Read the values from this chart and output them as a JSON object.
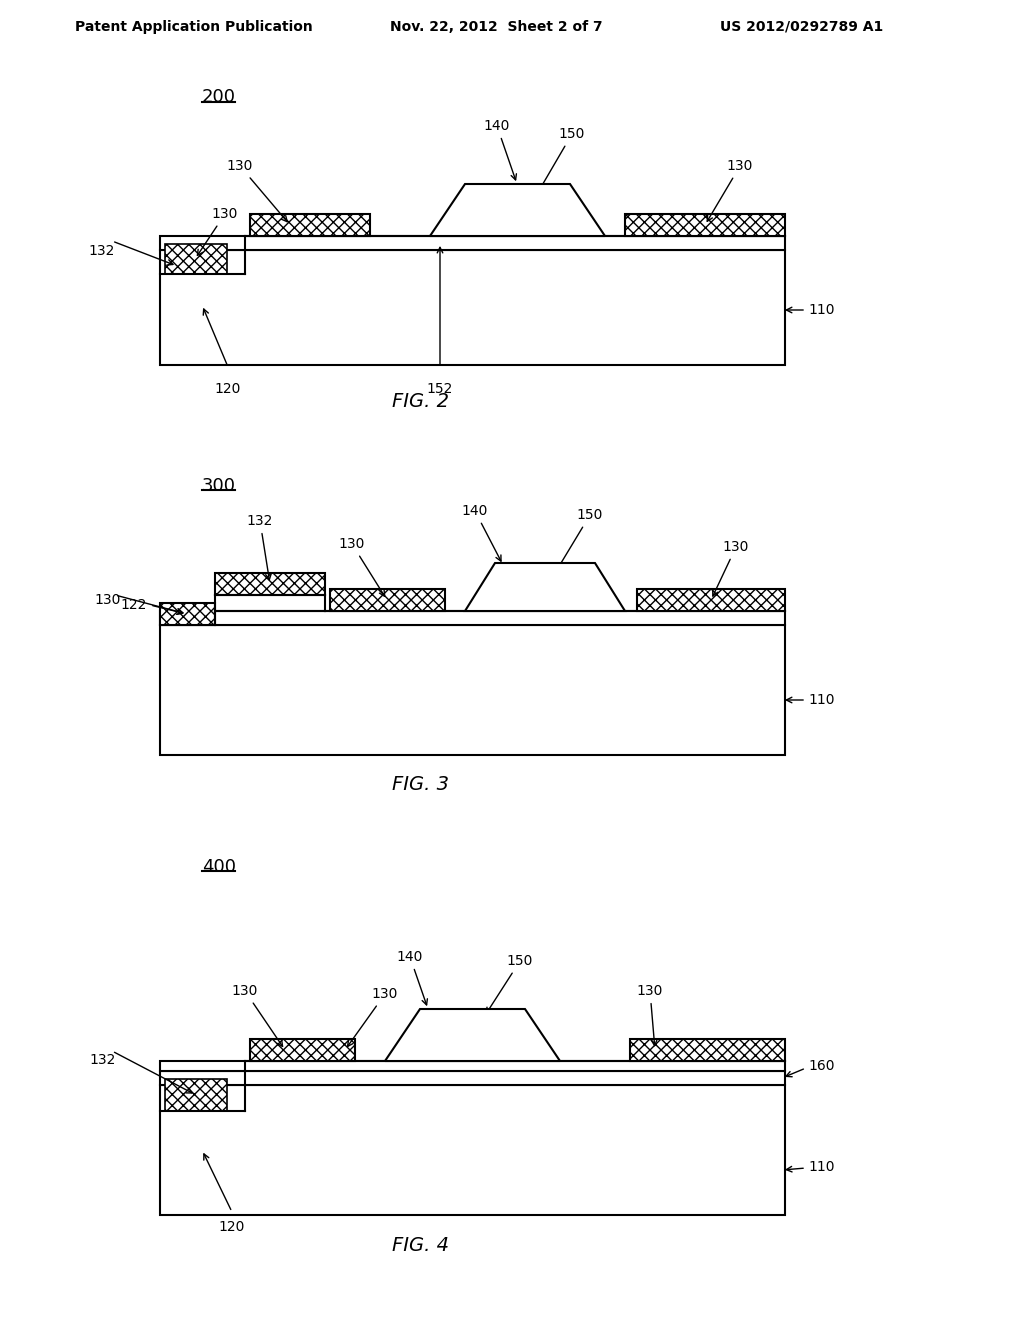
{
  "header_left": "Patent Application Publication",
  "header_mid": "Nov. 22, 2012  Sheet 2 of 7",
  "header_right": "US 2012/0292789 A1",
  "fig2_label": "200",
  "fig3_label": "300",
  "fig4_label": "400",
  "fig2_caption": "FIG. 2",
  "fig3_caption": "FIG. 3",
  "fig4_caption": "FIG. 4",
  "bg_color": "#ffffff",
  "line_color": "#000000"
}
